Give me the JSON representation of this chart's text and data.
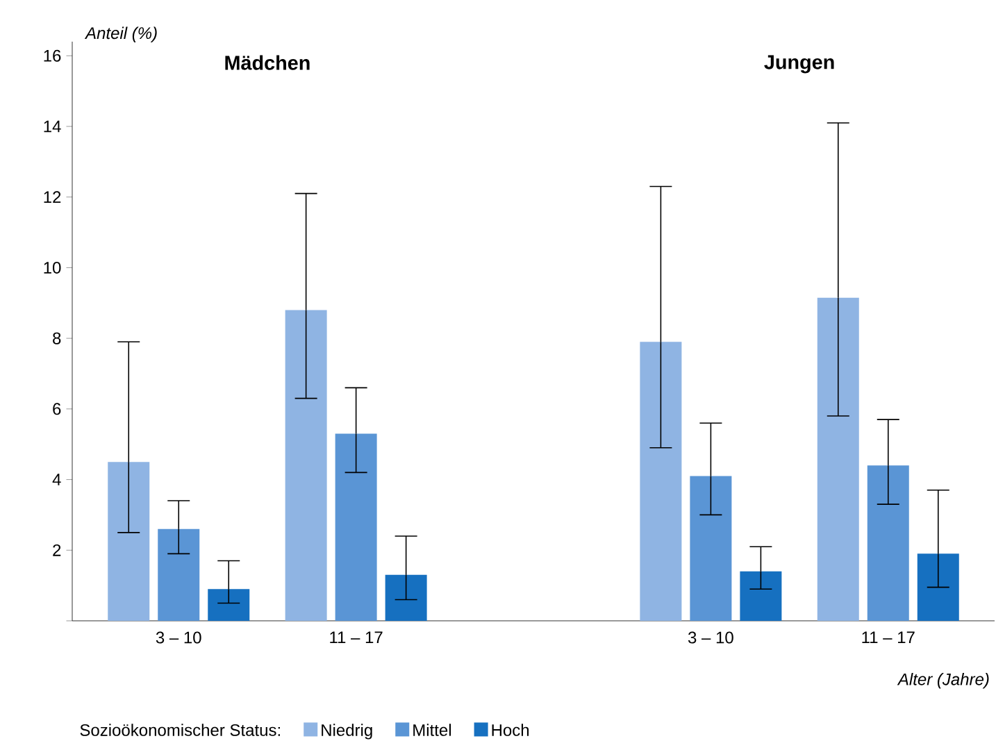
{
  "chart_data": {
    "type": "bar",
    "ylabel": "Anteil (%)",
    "xlabel": "Alter (Jahre)",
    "legend_title": "Sozioökonomischer Status:",
    "annotations": [
      "**Mädchen**",
      "**Jungen**"
    ],
    "categories": [
      "3 – 10",
      "11 – 17",
      null,
      "3 – 10",
      "11 – 17"
    ],
    "series": [
      {
        "name": "Niedrig",
        "color": "#8fb4e3",
        "values": [
          4.5,
          8.8,
          null,
          7.9,
          9.15
        ],
        "errors": [
          [
            2.5,
            7.9
          ],
          [
            6.3,
            12.1
          ],
          null,
          [
            4.9,
            12.3
          ],
          [
            5.8,
            14.1
          ]
        ]
      },
      {
        "name": "Mittel",
        "color": "#5a95d5",
        "values": [
          2.6,
          5.3,
          null,
          4.1,
          4.4
        ],
        "errors": [
          [
            1.9,
            3.4
          ],
          [
            4.2,
            6.6
          ],
          null,
          [
            3.0,
            5.6
          ],
          [
            3.3,
            5.7
          ]
        ]
      },
      {
        "name": "Hoch",
        "color": "#1670c0",
        "values": [
          0.9,
          1.3,
          null,
          1.4,
          1.9
        ],
        "errors": [
          [
            0.5,
            1.7
          ],
          [
            0.6,
            2.4
          ],
          null,
          [
            0.9,
            2.1
          ],
          [
            0.95,
            3.7
          ]
        ]
      }
    ],
    "ylim": [
      0,
      16.4
    ],
    "yticks": [
      {
        "value": 0,
        "label": null
      },
      2,
      4,
      6,
      8,
      10,
      12,
      14,
      16
    ],
    "grid": false,
    "legend": "bottom"
  }
}
